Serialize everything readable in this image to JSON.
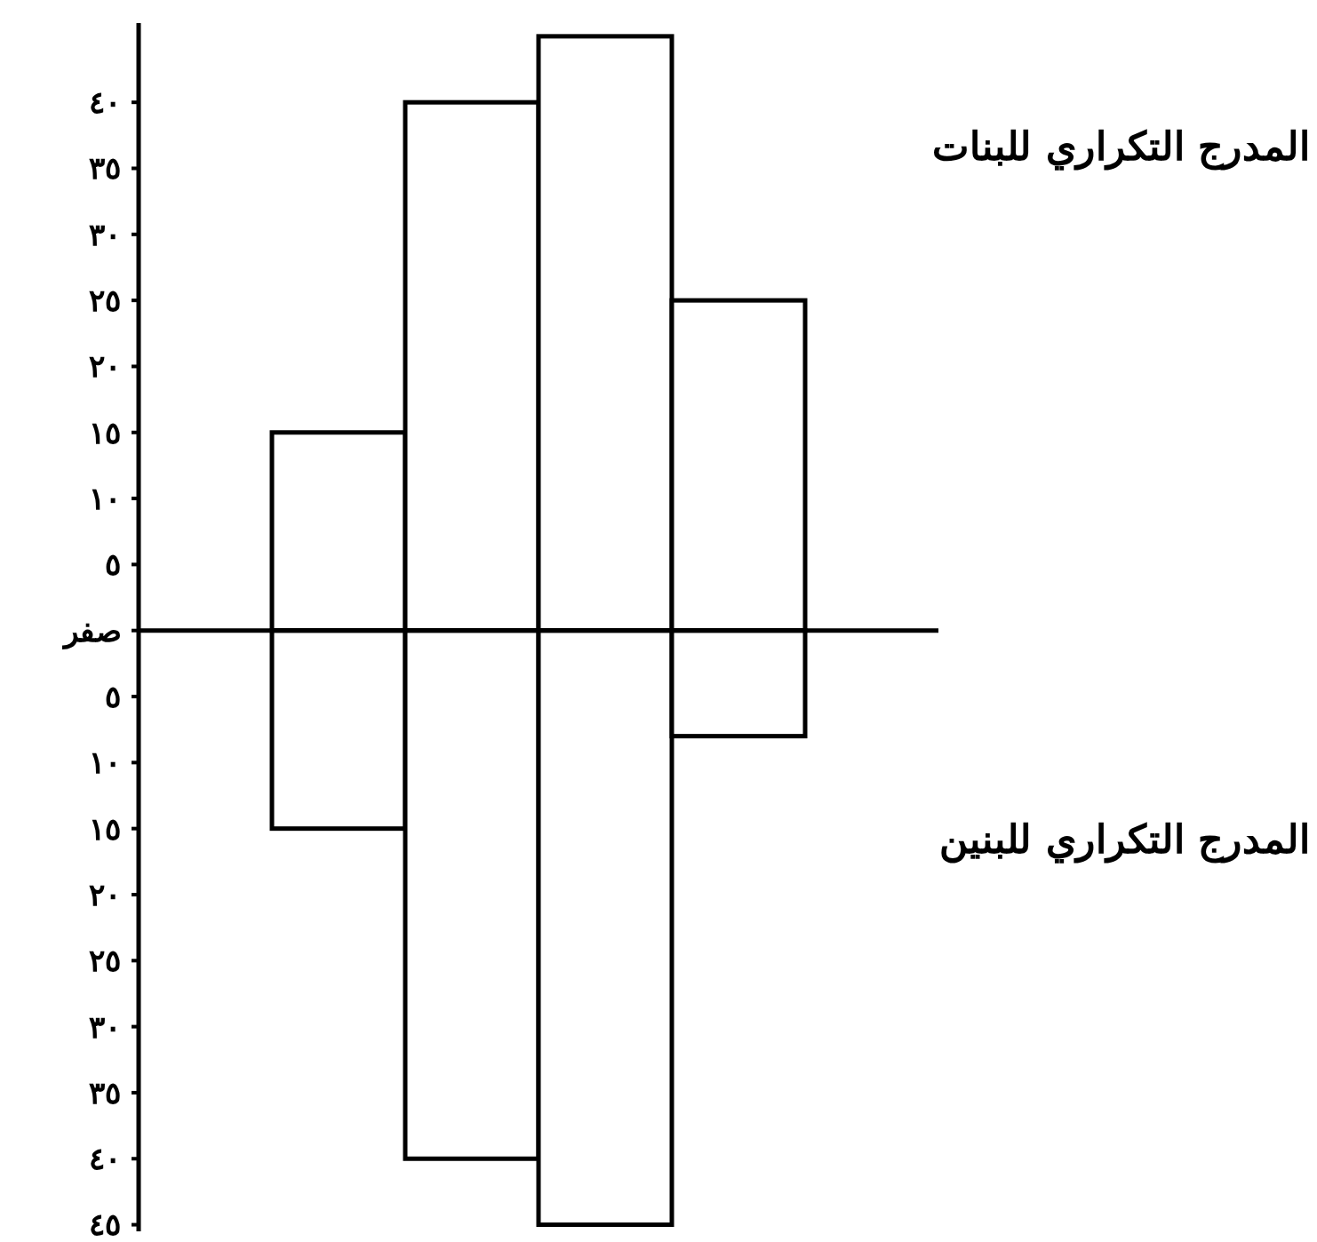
{
  "chart_data": {
    "type": "bar",
    "stacked": true,
    "tick_labels": "y",
    "categories": [
      null,
      null,
      null,
      null,
      null,
      null
    ],
    "series": [
      {
        "name": "المدرج التكراري للبنات",
        "color": "#000000",
        "values": [
          0,
          15,
          40,
          45,
          25,
          0
        ]
      },
      {
        "name": "المدرج التكراري للبنين",
        "color": "#000000",
        "values": [
          0,
          -15,
          -40,
          -45,
          -8,
          0
        ]
      }
    ],
    "ylim": [
      -45.5,
      46
    ],
    "yticks": [
      {
        "value": -45,
        "label": "٤٥"
      },
      {
        "value": -40,
        "label": "٤٠"
      },
      {
        "value": -35,
        "label": "٣٥"
      },
      {
        "value": -30,
        "label": "٣٠"
      },
      {
        "value": -25,
        "label": "٢٥"
      },
      {
        "value": -20,
        "label": "٢٠"
      },
      {
        "value": -15,
        "label": "١٥"
      },
      {
        "value": -10,
        "label": "١٠"
      },
      {
        "value": -5,
        "label": "٥"
      },
      {
        "value": 0,
        "label": "صفر"
      },
      {
        "value": 5,
        "label": "٥"
      },
      {
        "value": 10,
        "label": "١٠"
      },
      {
        "value": 15,
        "label": "١٥"
      },
      {
        "value": 20,
        "label": "٢٠"
      },
      {
        "value": 25,
        "label": "٢٥"
      },
      {
        "value": 30,
        "label": "٣٠"
      },
      {
        "value": 35,
        "label": "٣٥"
      },
      {
        "value": 40,
        "label": "٤٠"
      }
    ]
  }
}
